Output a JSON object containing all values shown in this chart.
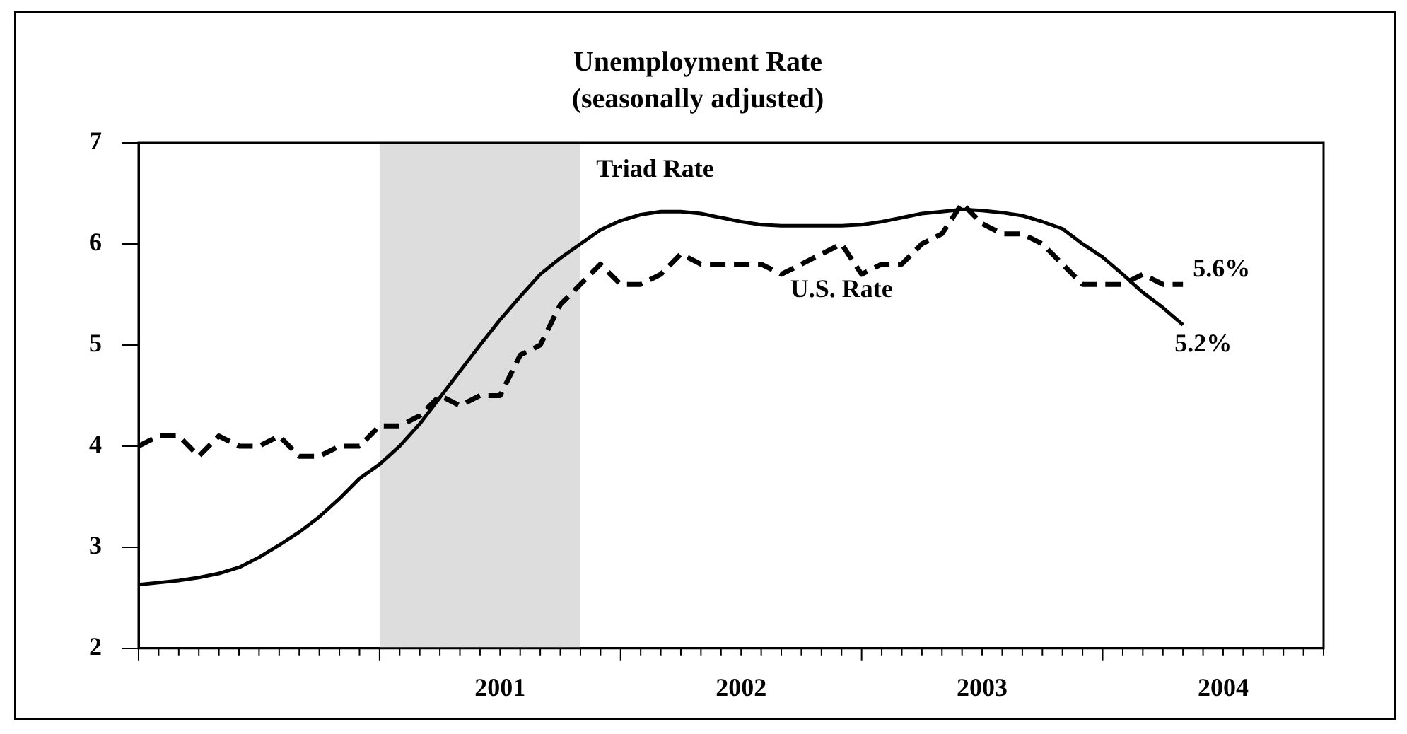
{
  "chart_data": {
    "type": "line",
    "title": "Unemployment Rate",
    "subtitle": "(seasonally adjusted)",
    "x": [
      "2000-01",
      "2000-02",
      "2000-03",
      "2000-04",
      "2000-05",
      "2000-06",
      "2000-07",
      "2000-08",
      "2000-09",
      "2000-10",
      "2000-11",
      "2000-12",
      "2001-01",
      "2001-02",
      "2001-03",
      "2001-04",
      "2001-05",
      "2001-06",
      "2001-07",
      "2001-08",
      "2001-09",
      "2001-10",
      "2001-11",
      "2001-12",
      "2002-01",
      "2002-02",
      "2002-03",
      "2002-04",
      "2002-05",
      "2002-06",
      "2002-07",
      "2002-08",
      "2002-09",
      "2002-10",
      "2002-11",
      "2002-12",
      "2003-01",
      "2003-02",
      "2003-03",
      "2003-04",
      "2003-05",
      "2003-06",
      "2003-07",
      "2003-08",
      "2003-09",
      "2003-10",
      "2003-11",
      "2003-12",
      "2004-01",
      "2004-02",
      "2004-03",
      "2004-04",
      "2004-05"
    ],
    "series": [
      {
        "name": "Triad Rate",
        "color": "#000000",
        "line_style": "solid",
        "values": [
          2.63,
          2.65,
          2.67,
          2.7,
          2.74,
          2.8,
          2.9,
          3.02,
          3.15,
          3.3,
          3.48,
          3.68,
          3.82,
          4.0,
          4.22,
          4.48,
          4.74,
          5.0,
          5.25,
          5.48,
          5.7,
          5.86,
          6.0,
          6.14,
          6.23,
          6.29,
          6.32,
          6.32,
          6.3,
          6.26,
          6.22,
          6.19,
          6.18,
          6.18,
          6.18,
          6.18,
          6.19,
          6.22,
          6.26,
          6.3,
          6.32,
          6.34,
          6.33,
          6.31,
          6.28,
          6.22,
          6.15,
          6.0,
          5.87,
          5.7,
          5.52,
          5.37,
          5.2
        ],
        "value_labels": [
          null,
          null,
          null,
          null,
          null,
          null,
          null,
          null,
          null,
          null,
          null,
          null,
          null,
          null,
          null,
          null,
          null,
          null,
          null,
          null,
          null,
          null,
          null,
          null,
          null,
          null,
          null,
          null,
          null,
          null,
          null,
          null,
          null,
          null,
          null,
          null,
          null,
          null,
          null,
          null,
          null,
          null,
          null,
          null,
          null,
          null,
          null,
          null,
          null,
          null,
          null,
          null,
          "5.2%"
        ]
      },
      {
        "name": "U.S. Rate",
        "color": "#000000",
        "line_style": "dashed",
        "values": [
          4.0,
          4.1,
          4.1,
          3.9,
          4.1,
          4.0,
          4.0,
          4.1,
          3.9,
          3.9,
          4.0,
          4.0,
          4.2,
          4.2,
          4.3,
          4.5,
          4.4,
          4.5,
          4.5,
          4.9,
          5.0,
          5.4,
          5.6,
          5.8,
          5.6,
          5.6,
          5.7,
          5.9,
          5.8,
          5.8,
          5.8,
          5.8,
          5.7,
          5.8,
          5.9,
          6.0,
          5.7,
          5.8,
          5.8,
          6.0,
          6.1,
          6.4,
          6.2,
          6.1,
          6.1,
          6.0,
          5.8,
          5.6,
          5.6,
          5.6,
          5.7,
          5.6,
          5.6
        ],
        "value_labels": [
          null,
          null,
          null,
          null,
          null,
          null,
          null,
          null,
          null,
          null,
          null,
          null,
          null,
          null,
          null,
          null,
          null,
          null,
          null,
          null,
          null,
          null,
          null,
          null,
          null,
          null,
          null,
          null,
          null,
          null,
          null,
          null,
          null,
          null,
          null,
          null,
          null,
          null,
          null,
          null,
          null,
          null,
          null,
          null,
          null,
          null,
          null,
          null,
          null,
          null,
          null,
          null,
          "5.6%"
        ]
      }
    ],
    "xlim": [
      "2000-01",
      "2004-12"
    ],
    "xticks": [
      {
        "value": "2000-01",
        "label": null
      },
      {
        "value": "2001-01",
        "label": null
      },
      {
        "value": "2002-01",
        "label": null
      },
      {
        "value": "2003-01",
        "label": null
      },
      {
        "value": "2004-01",
        "label": null
      },
      {
        "value": "2001-07",
        "label": "2001"
      },
      {
        "value": "2002-07",
        "label": "2002"
      },
      {
        "value": "2003-07",
        "label": "2003"
      },
      {
        "value": "2004-07",
        "label": "2004"
      }
    ],
    "ylim": [
      2,
      7
    ],
    "yticks": [
      2,
      3,
      4,
      5,
      6,
      7
    ],
    "bands": [
      {
        "axis": "x",
        "from": "2001-01",
        "to": "2001-11",
        "color": "#dddddd"
      }
    ]
  }
}
